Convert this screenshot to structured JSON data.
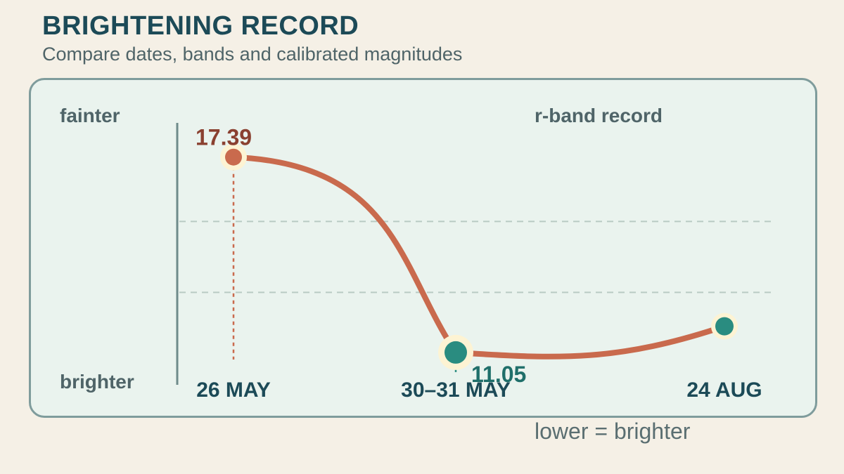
{
  "title": "BRIGHTENING RECORD",
  "subtitle": "Compare dates, bands and calibrated magnitudes",
  "footnote": "lower = brighter",
  "colors": {
    "background": "#f5f0e6",
    "panel": "#eaf3ee",
    "line": "#c96a4d",
    "accent_teal": "#2a8c80",
    "label_red": "#8a4030",
    "label_teal": "#1f6f6a",
    "title": "#1c4a57"
  },
  "chart_data": {
    "type": "line",
    "title": "r-band record",
    "x": [
      "26 MAY",
      "30–31 MAY",
      "24 AUG"
    ],
    "y_top_label": "fainter",
    "y_bottom_label": "brighter",
    "grid": true,
    "series": [
      {
        "points": [
          {
            "x": "26 MAY",
            "y": 17.39,
            "label": "17.39"
          },
          {
            "x": "30–31 MAY",
            "y": 11.05,
            "label": "11.05"
          },
          {
            "x": "24 AUG",
            "y": 11.9,
            "label": ""
          }
        ]
      }
    ],
    "ylim": [
      10.0,
      18.5
    ]
  }
}
